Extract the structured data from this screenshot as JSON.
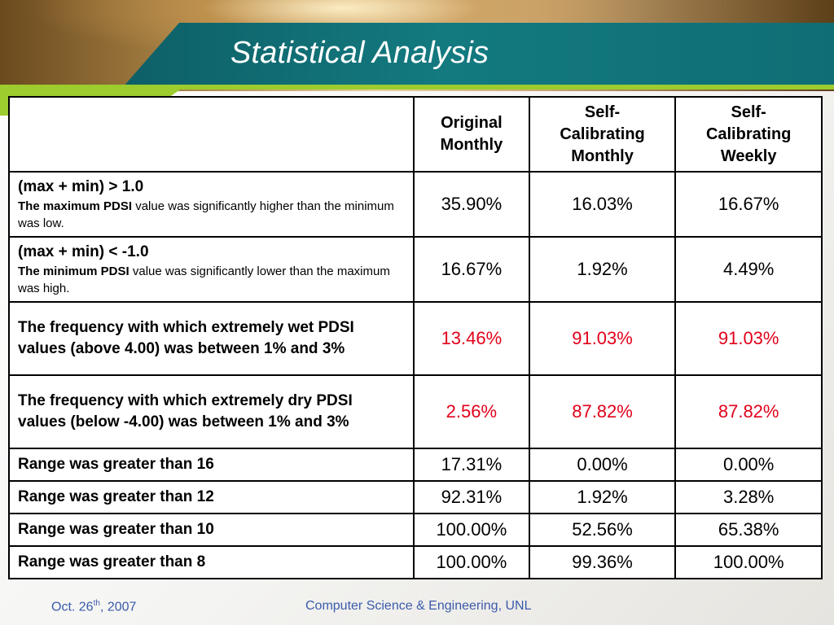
{
  "slide": {
    "title": "Statistical Analysis"
  },
  "table": {
    "headers": [
      "",
      "Original Monthly",
      "Self-Calibrating Monthly",
      "Self-Calibrating Weekly"
    ],
    "header_lines": [
      [],
      [
        "Original",
        "Monthly"
      ],
      [
        "Self-",
        "Calibrating",
        "Monthly"
      ],
      [
        "Self-",
        "Calibrating",
        "Weekly"
      ]
    ],
    "rows": [
      {
        "label": "(max + min) > 1.0",
        "sub_bold": "The maximum PDSI",
        "sub_rest": " value was significantly higher than the minimum was low.",
        "values": [
          "35.90%",
          "16.03%",
          "16.67%"
        ]
      },
      {
        "label": "(max + min) < -1.0",
        "sub_bold": "The minimum PDSI",
        "sub_rest": " value was significantly lower than the maximum was high.",
        "values": [
          "16.67%",
          "1.92%",
          "4.49%"
        ]
      },
      {
        "label": "The frequency with which extremely wet PDSI values (above 4.00) was between 1% and 3%",
        "values": [
          "13.46%",
          "91.03%",
          "91.03%"
        ]
      },
      {
        "label": "The frequency with which extremely dry PDSI values (below -4.00) was between 1% and 3%",
        "values": [
          "2.56%",
          "87.82%",
          "87.82%"
        ]
      },
      {
        "label": "Range was greater than 16",
        "values": [
          "17.31%",
          "0.00%",
          "0.00%"
        ]
      },
      {
        "label": "Range was greater than 12",
        "values": [
          "92.31%",
          "1.92%",
          "3.28%"
        ]
      },
      {
        "label": "Range was greater than 10",
        "values": [
          "100.00%",
          "52.56%",
          "65.38%"
        ]
      },
      {
        "label": "Range was greater than 8",
        "values": [
          "100.00%",
          "99.36%",
          "100.00%"
        ]
      }
    ]
  },
  "footer": {
    "date_prefix": "Oct. 26",
    "date_sup": "th",
    "date_suffix": ", 2007",
    "org": "Computer Science & Engineering, UNL"
  },
  "colors": {
    "title_band": "#137a80",
    "accent_green": "#9ccc2d",
    "highlight_value": "#e2001a",
    "footer_text": "#3b5bab"
  }
}
